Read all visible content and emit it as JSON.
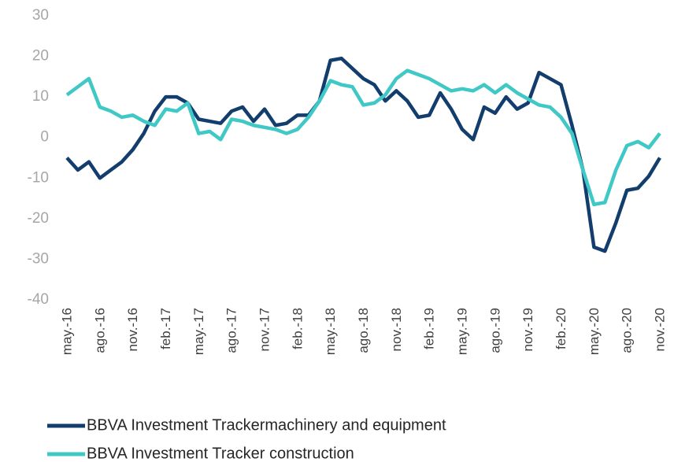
{
  "chart_data": {
    "type": "line",
    "categories": [
      "may.-16",
      null,
      null,
      "ago.-16",
      null,
      null,
      "nov.-16",
      null,
      null,
      "feb.-17",
      null,
      null,
      "may.-17",
      null,
      null,
      "ago.-17",
      null,
      null,
      "nov.-17",
      null,
      null,
      "feb.-18",
      null,
      null,
      "may.-18",
      null,
      null,
      "ago.-18",
      null,
      null,
      "nov.-18",
      null,
      null,
      "feb.-19",
      null,
      null,
      "may.-19",
      null,
      null,
      "ago.-19",
      null,
      null,
      "nov.-19",
      null,
      null,
      "feb.-20",
      null,
      null,
      "may.-20",
      null,
      null,
      "ago.-20",
      null,
      null,
      "nov.-20"
    ],
    "series": [
      {
        "name": "BBVA Investment Trackermachinery and equipment",
        "color": "#123d6d",
        "values": [
          -5,
          -8,
          -6,
          -10,
          -8,
          -6,
          -3,
          1,
          6.5,
          10,
          10,
          8.5,
          4.5,
          4,
          3.5,
          6.5,
          7.5,
          4,
          7,
          3,
          3.5,
          5.5,
          5.5,
          9,
          19,
          19.5,
          17,
          14.5,
          13,
          9,
          11.5,
          9,
          5,
          5.5,
          11,
          7,
          2,
          -0.5,
          7.5,
          6,
          10,
          7,
          8.5,
          16,
          14.5,
          13,
          3,
          -8,
          -27,
          -28,
          -21,
          -13,
          -12.5,
          -9.5,
          -5
        ]
      },
      {
        "name": "BBVA Investment Tracker construction",
        "color": "#3fc8c6",
        "values": [
          10.5,
          12.5,
          14.5,
          7.5,
          6.5,
          5,
          5.5,
          4,
          3,
          7,
          6.5,
          8.5,
          1,
          1.5,
          -0.5,
          4.5,
          4,
          3,
          2.5,
          2,
          1,
          2,
          5,
          9,
          14,
          13,
          12.5,
          8,
          8.5,
          10.5,
          14.5,
          16.5,
          15.5,
          14.5,
          13,
          11.5,
          12,
          11.5,
          13,
          11,
          13,
          11,
          9.5,
          8,
          7.5,
          5,
          1,
          -8,
          -16.5,
          -16,
          -8,
          -2,
          -1,
          -2.5,
          1
        ]
      }
    ],
    "ylim": [
      -40,
      30
    ],
    "yticks": [
      -40,
      -30,
      -20,
      -10,
      0,
      10,
      20,
      30
    ]
  }
}
